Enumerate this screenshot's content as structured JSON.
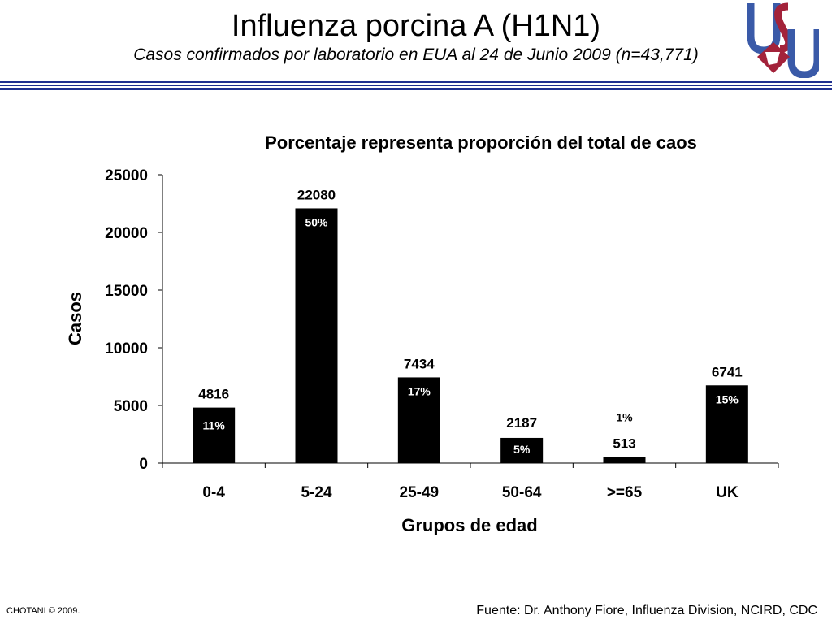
{
  "slide": {
    "title": "Influenza porcina A (H1N1)",
    "subtitle": "Casos confirmados por laboratorio en EUA al 24 de Junio 2009 (n=43,771)",
    "logo_letters": "USU",
    "footer_left": "CHOTANI © 2009.",
    "footer_right": "Fuente: Dr. Anthony Fiore, Influenza Division, NCIRD, CDC"
  },
  "colors": {
    "bar": "#000000",
    "rule": "#1f2f8f",
    "logo_blue": "#3a5aa8",
    "logo_red": "#a3223a"
  },
  "chart_data": {
    "type": "bar",
    "title": "Porcentaje representa proporción del total de caos",
    "xlabel": "Grupos de edad",
    "ylabel": "Casos",
    "categories": [
      "0-4",
      "5-24",
      "25-49",
      "50-64",
      ">=65",
      "UK"
    ],
    "values": [
      4816,
      22080,
      7434,
      2187,
      513,
      6741
    ],
    "percent_labels": [
      "11%",
      "50%",
      "17%",
      "5%",
      "1%",
      "15%"
    ],
    "ylim": [
      0,
      25000
    ],
    "yticks": [
      0,
      5000,
      10000,
      15000,
      20000,
      25000
    ],
    "grid": false,
    "legend": "none"
  }
}
